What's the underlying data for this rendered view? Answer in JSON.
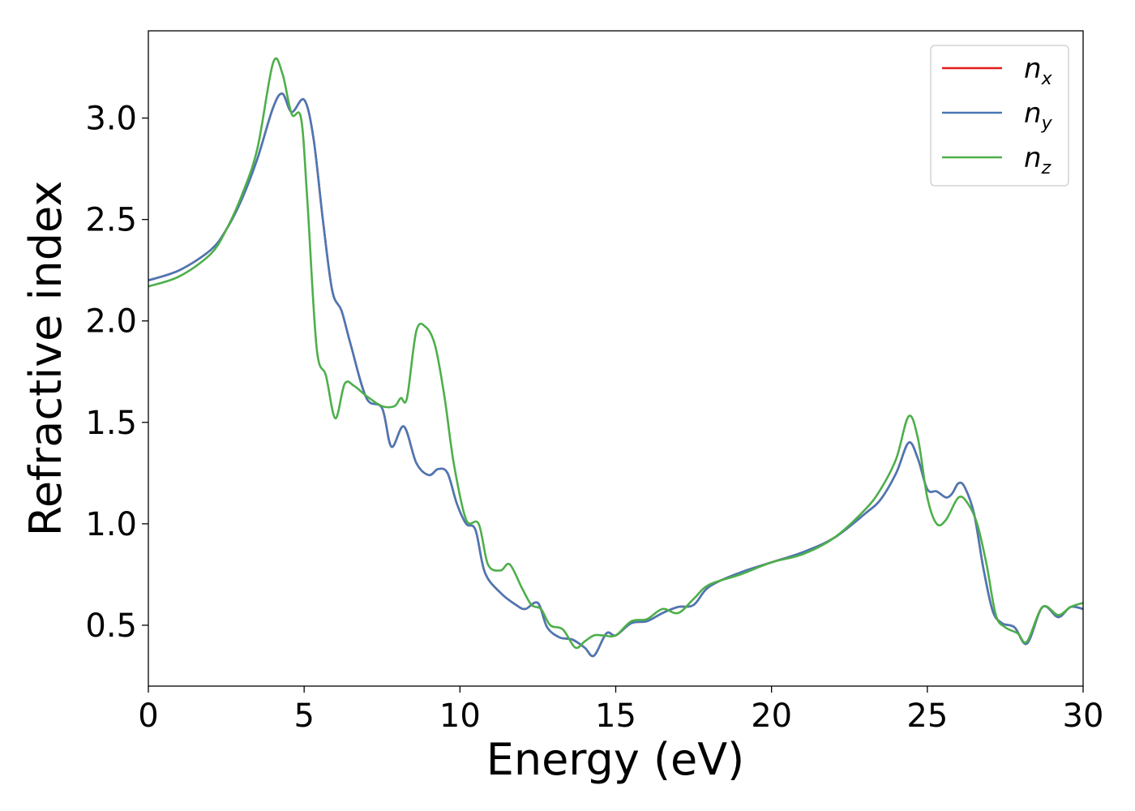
{
  "chart_data": {
    "type": "line",
    "xlabel": "Energy (eV)",
    "ylabel": "Refractive index",
    "xlim": [
      0,
      30
    ],
    "ylim": [
      0.2,
      3.43
    ],
    "xticks": [
      0,
      5,
      10,
      15,
      20,
      25,
      30
    ],
    "yticks": [
      0.5,
      1.0,
      1.5,
      2.0,
      2.5,
      3.0
    ],
    "xtick_labels": [
      "0",
      "5",
      "10",
      "15",
      "20",
      "25",
      "30"
    ],
    "ytick_labels": [
      "0.5",
      "1.0",
      "1.5",
      "2.0",
      "2.5",
      "3.0"
    ],
    "grid": false,
    "legend_position": "top-right",
    "series": [
      {
        "name": "n_x",
        "legend_base": "n",
        "legend_sub": "x",
        "color": "#e41a1c",
        "x": [
          0,
          1,
          2,
          2.5,
          3,
          3.5,
          4,
          4.3,
          4.6,
          5,
          5.3,
          5.6,
          5.9,
          6.2,
          6.5,
          7,
          7.5,
          7.8,
          8.2,
          8.6,
          9,
          9.3,
          9.6,
          9.9,
          10.2,
          10.5,
          10.8,
          11.3,
          11.8,
          12.1,
          12.5,
          12.8,
          13.2,
          13.6,
          14,
          14.3,
          14.7,
          15,
          15.5,
          16,
          16.5,
          17,
          17.5,
          18,
          19,
          20,
          21,
          22,
          23,
          23.5,
          24,
          24.4,
          24.7,
          25,
          25.3,
          25.6,
          25.8,
          26,
          26.2,
          26.5,
          26.8,
          27.1,
          27.4,
          27.8,
          28.2,
          28.7,
          29.2,
          29.6,
          30
        ],
        "y": [
          2.2,
          2.25,
          2.35,
          2.45,
          2.6,
          2.8,
          3.05,
          3.12,
          3.03,
          3.09,
          2.9,
          2.5,
          2.15,
          2.05,
          1.88,
          1.62,
          1.57,
          1.38,
          1.48,
          1.3,
          1.24,
          1.27,
          1.25,
          1.1,
          1.0,
          0.97,
          0.76,
          0.66,
          0.6,
          0.58,
          0.61,
          0.49,
          0.44,
          0.43,
          0.39,
          0.35,
          0.46,
          0.45,
          0.51,
          0.52,
          0.56,
          0.59,
          0.6,
          0.69,
          0.76,
          0.81,
          0.86,
          0.93,
          1.05,
          1.12,
          1.25,
          1.4,
          1.32,
          1.17,
          1.16,
          1.13,
          1.15,
          1.2,
          1.18,
          1.05,
          0.78,
          0.57,
          0.51,
          0.49,
          0.41,
          0.59,
          0.54,
          0.59,
          0.58
        ]
      },
      {
        "name": "n_y",
        "legend_base": "n",
        "legend_sub": "y",
        "color": "#4a78b5",
        "x": [
          0,
          1,
          2,
          2.5,
          3,
          3.5,
          4,
          4.3,
          4.6,
          5,
          5.3,
          5.6,
          5.9,
          6.2,
          6.5,
          7,
          7.5,
          7.8,
          8.2,
          8.6,
          9,
          9.3,
          9.6,
          9.9,
          10.2,
          10.5,
          10.8,
          11.3,
          11.8,
          12.1,
          12.5,
          12.8,
          13.2,
          13.6,
          14,
          14.3,
          14.7,
          15,
          15.5,
          16,
          16.5,
          17,
          17.5,
          18,
          19,
          20,
          21,
          22,
          23,
          23.5,
          24,
          24.4,
          24.7,
          25,
          25.3,
          25.6,
          25.8,
          26,
          26.2,
          26.5,
          26.8,
          27.1,
          27.4,
          27.8,
          28.2,
          28.7,
          29.2,
          29.6,
          30
        ],
        "y": [
          2.2,
          2.25,
          2.35,
          2.45,
          2.6,
          2.8,
          3.05,
          3.12,
          3.03,
          3.09,
          2.9,
          2.5,
          2.15,
          2.05,
          1.88,
          1.62,
          1.57,
          1.38,
          1.48,
          1.3,
          1.24,
          1.27,
          1.25,
          1.1,
          1.0,
          0.97,
          0.76,
          0.66,
          0.6,
          0.58,
          0.61,
          0.49,
          0.44,
          0.43,
          0.39,
          0.35,
          0.46,
          0.45,
          0.51,
          0.52,
          0.56,
          0.59,
          0.6,
          0.69,
          0.76,
          0.81,
          0.86,
          0.93,
          1.05,
          1.12,
          1.25,
          1.4,
          1.32,
          1.17,
          1.16,
          1.13,
          1.15,
          1.2,
          1.18,
          1.05,
          0.78,
          0.57,
          0.51,
          0.49,
          0.41,
          0.59,
          0.54,
          0.59,
          0.58
        ]
      },
      {
        "name": "n_z",
        "legend_base": "n",
        "legend_sub": "z",
        "color": "#4daf4a",
        "x": [
          0,
          1,
          2,
          2.5,
          3,
          3.5,
          4,
          4.3,
          4.6,
          4.9,
          5.1,
          5.4,
          5.7,
          6,
          6.3,
          6.6,
          7,
          7.5,
          7.9,
          8.1,
          8.3,
          8.6,
          8.9,
          9.2,
          9.5,
          9.8,
          10.2,
          10.6,
          10.9,
          11.3,
          11.6,
          12,
          12.3,
          12.6,
          12.9,
          13.3,
          13.7,
          14,
          14.3,
          14.6,
          15,
          15.5,
          16,
          16.5,
          17,
          17.5,
          18,
          19,
          20,
          21,
          22,
          23,
          23.5,
          24,
          24.4,
          24.7,
          25,
          25.3,
          25.6,
          26,
          26.3,
          26.6,
          26.9,
          27.2,
          27.5,
          27.9,
          28.2,
          28.7,
          29.2,
          29.6,
          30
        ],
        "y": [
          2.17,
          2.22,
          2.33,
          2.45,
          2.62,
          2.85,
          3.27,
          3.22,
          3.02,
          3.0,
          2.6,
          1.87,
          1.73,
          1.52,
          1.69,
          1.68,
          1.63,
          1.58,
          1.58,
          1.62,
          1.62,
          1.95,
          1.97,
          1.88,
          1.63,
          1.3,
          1.02,
          1.0,
          0.8,
          0.77,
          0.8,
          0.68,
          0.6,
          0.58,
          0.5,
          0.48,
          0.39,
          0.42,
          0.45,
          0.45,
          0.45,
          0.52,
          0.53,
          0.58,
          0.56,
          0.63,
          0.7,
          0.75,
          0.81,
          0.85,
          0.93,
          1.07,
          1.17,
          1.32,
          1.53,
          1.42,
          1.13,
          1.0,
          1.02,
          1.13,
          1.1,
          1.0,
          0.8,
          0.55,
          0.49,
          0.46,
          0.42,
          0.59,
          0.55,
          0.59,
          0.61
        ]
      }
    ]
  }
}
